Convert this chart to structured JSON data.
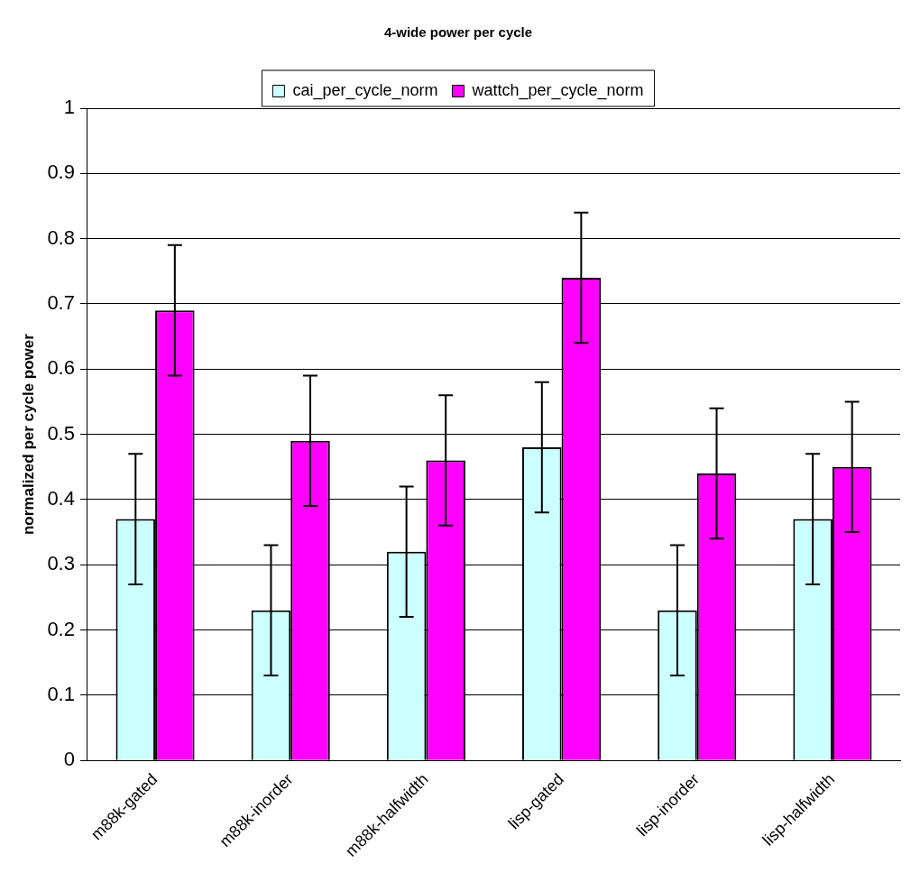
{
  "chart_data": {
    "type": "bar",
    "title": "4-wide power per cycle",
    "ylabel": "normalized per cycle power",
    "categories": [
      "m88k-gated",
      "m88k-inorder",
      "m88k-halfwidth",
      "lisp-gated",
      "lisp-inorder",
      "lisp-halfwidth"
    ],
    "series": [
      {
        "name": "cai_per_cycle_norm",
        "color": "#ccffff",
        "values": [
          0.37,
          0.23,
          0.32,
          0.48,
          0.23,
          0.37
        ],
        "errors": [
          0.1,
          0.1,
          0.1,
          0.1,
          0.1,
          0.1
        ]
      },
      {
        "name": "wattch_per_cycle_norm",
        "color": "#ff00ff",
        "values": [
          0.69,
          0.49,
          0.46,
          0.74,
          0.44,
          0.45
        ],
        "errors": [
          0.1,
          0.1,
          0.1,
          0.1,
          0.1,
          0.1
        ]
      }
    ],
    "ylim": [
      0,
      1
    ],
    "yticks": [
      0,
      0.1,
      0.2,
      0.3,
      0.4,
      0.5,
      0.6,
      0.7,
      0.8,
      0.9,
      1
    ],
    "grid": "y",
    "legend": "top"
  }
}
